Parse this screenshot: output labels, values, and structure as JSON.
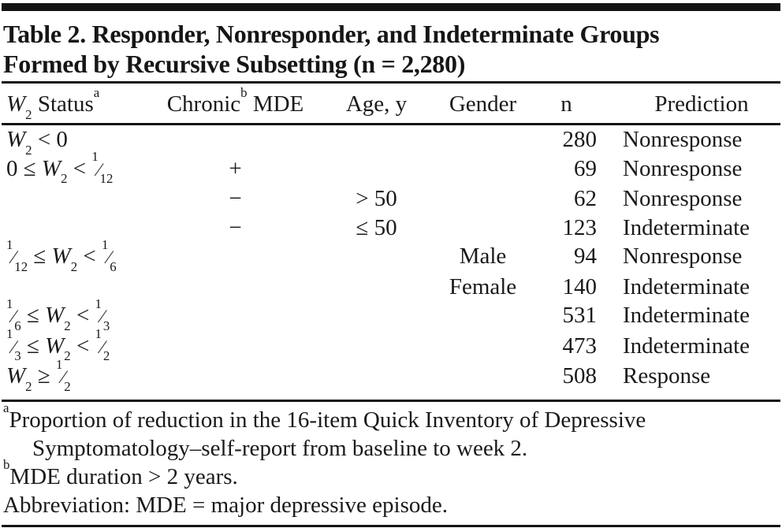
{
  "colors": {
    "text": "#1a1a1a",
    "rule": "#141414",
    "background": "#ffffff"
  },
  "title": {
    "line1": "Table 2. Responder, Nonresponder, and Indeterminate Groups",
    "line2": "Formed by Recursive Subsetting (n = 2,280)"
  },
  "table": {
    "columns": [
      {
        "label": "W2 Status",
        "marker": "a"
      },
      {
        "label": "Chronic",
        "marker": "b",
        "label2": " MDE"
      },
      {
        "label": "Age, y"
      },
      {
        "label": "Gender"
      },
      {
        "label": "n"
      },
      {
        "label": "Prediction"
      }
    ],
    "rows": [
      {
        "w2": "W2 < 0",
        "chronic": "",
        "age": "",
        "gender": "",
        "n": "280",
        "prediction": "Nonresponse"
      },
      {
        "w2": "0 ≤ W2 < 1/12",
        "chronic": "+",
        "age": "",
        "gender": "",
        "n": "69",
        "prediction": "Nonresponse"
      },
      {
        "w2": "",
        "chronic": "−",
        "age": "> 50",
        "gender": "",
        "n": "62",
        "prediction": "Nonresponse"
      },
      {
        "w2": "",
        "chronic": "−",
        "age": "≤ 50",
        "gender": "",
        "n": "123",
        "prediction": "Indeterminate"
      },
      {
        "w2": "1/12 ≤ W2 < 1/6",
        "chronic": "",
        "age": "",
        "gender": "Male",
        "n": "94",
        "prediction": "Nonresponse"
      },
      {
        "w2": "",
        "chronic": "",
        "age": "",
        "gender": "Female",
        "n": "140",
        "prediction": "Indeterminate"
      },
      {
        "w2": "1/6 ≤ W2 < 1/3",
        "chronic": "",
        "age": "",
        "gender": "",
        "n": "531",
        "prediction": "Indeterminate"
      },
      {
        "w2": "1/3 ≤ W2 < 1/2",
        "chronic": "",
        "age": "",
        "gender": "",
        "n": "473",
        "prediction": "Indeterminate"
      },
      {
        "w2": "W2 ≥ 1/2",
        "chronic": "",
        "age": "",
        "gender": "",
        "n": "508",
        "prediction": "Response"
      }
    ]
  },
  "footnotes": [
    {
      "marker": "a",
      "text": "Proportion of reduction in the 16-item Quick Inventory of Depressive Symptomatology–self-report from baseline to week 2."
    },
    {
      "marker": "b",
      "text": "MDE duration > 2 years."
    },
    {
      "marker": "",
      "text": "Abbreviation: MDE = major depressive episode."
    }
  ]
}
